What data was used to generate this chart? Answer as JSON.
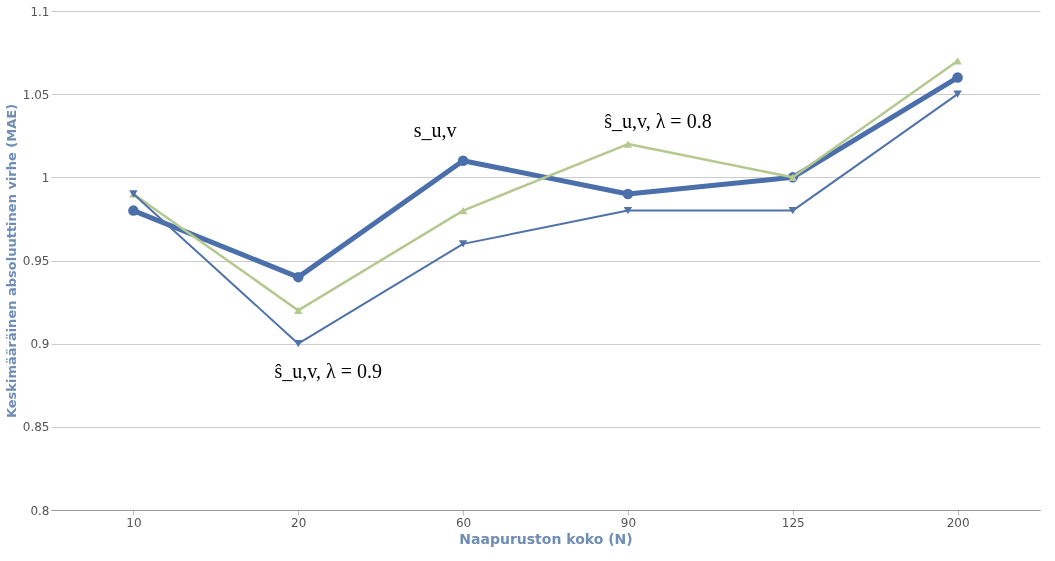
{
  "chart_data": {
    "type": "line",
    "xlabel": "Naapuruston koko (N)",
    "ylabel": "Keskimääräinen absoluuttinen virhe (MAE)",
    "categories": [
      "10",
      "20",
      "60",
      "90",
      "125",
      "200"
    ],
    "series": [
      {
        "name": "s_u,v",
        "color": "#4a6fab",
        "values": [
          0.98,
          0.94,
          1.01,
          0.99,
          1.0,
          1.06
        ],
        "marker": "circle"
      },
      {
        "name": "ŝ_u,v, λ = 0.8",
        "color": "#b4c88f",
        "values": [
          0.99,
          0.92,
          0.98,
          1.02,
          1.0,
          1.07
        ],
        "marker": "triangle"
      },
      {
        "name": "ŝ_u,v, λ = 0.9",
        "color": "#4f72a8",
        "values": [
          0.99,
          0.9,
          0.96,
          0.98,
          0.98,
          1.05
        ],
        "marker": "triangle"
      }
    ],
    "ylim": [
      0.8,
      1.1
    ],
    "yticks": [
      0.8,
      0.85,
      0.9,
      0.95,
      1,
      1.05,
      1.1
    ],
    "grid": "y",
    "legend": false
  }
}
